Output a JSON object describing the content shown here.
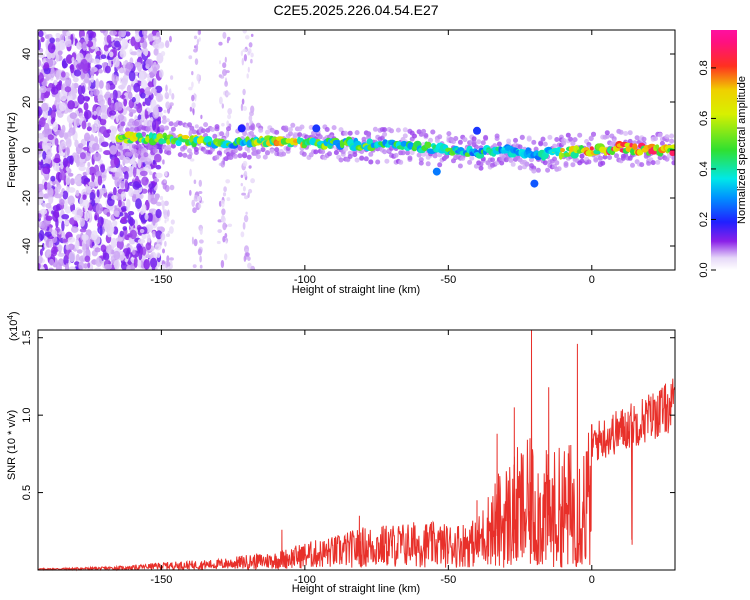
{
  "title": "C2E5.2025.226.04.54.E27",
  "colors": {
    "snr_line": "#e8302a",
    "axis": "#000000",
    "background": "#ffffff",
    "heat_faint": "#d9c4f5",
    "heat_purple": "#7a1be0",
    "heat_blue": "#1d3cff",
    "heat_cyan": "#00e8e8",
    "heat_green": "#30e030",
    "heat_yellow": "#f0e000",
    "heat_red": "#ff2020"
  },
  "chart_data": [
    {
      "type": "heatmap",
      "xlabel": "Height of straight line (km)",
      "ylabel": "Frequency (Hz)",
      "xlim": [
        -193,
        29
      ],
      "ylim": [
        -50,
        50
      ],
      "xticks": [
        -150,
        -100,
        -50,
        0
      ],
      "xtick_labels": [
        "-150",
        "-100",
        "-50",
        "0"
      ],
      "yticks": [
        -40,
        -20,
        0,
        20,
        40
      ],
      "ytick_labels": [
        "-40",
        "-20",
        "0",
        "20",
        "40"
      ],
      "colorbar": {
        "label": "Normalized spectral amplitude",
        "range": [
          0,
          0.95
        ],
        "ticks": [
          0.0,
          0.2,
          0.4,
          0.6,
          0.8
        ],
        "tick_labels": [
          "0.0",
          "0.2",
          "0.4",
          "0.6",
          "0.8"
        ]
      },
      "ridge": {
        "x": [
          -165,
          -150,
          -140,
          -125,
          -110,
          -100,
          -90,
          -80,
          -70,
          -60,
          -50,
          -40,
          -30,
          -20,
          -10,
          0,
          10,
          20,
          29
        ],
        "frequency": [
          5,
          5,
          4,
          3,
          4,
          3,
          3,
          2,
          2,
          1,
          0,
          -1,
          0,
          -2,
          -1,
          0,
          1,
          0,
          0
        ],
        "amplitude": [
          0.85,
          0.6,
          0.75,
          0.5,
          0.85,
          0.75,
          0.55,
          0.6,
          0.55,
          0.5,
          0.55,
          0.5,
          0.5,
          0.4,
          0.75,
          0.85,
          0.9,
          0.92,
          0.92
        ]
      }
    },
    {
      "type": "line",
      "xlabel": "Height of straight line (km)",
      "ylabel": "SNR (10 * v/v)",
      "y_multiplier": "(x10",
      "y_multiplier_exp": "4",
      "xlim": [
        -193,
        29
      ],
      "ylim": [
        0,
        1.55
      ],
      "xticks": [
        -150,
        -100,
        -50,
        0
      ],
      "xtick_labels": [
        "-150",
        "-100",
        "-50",
        "0"
      ],
      "yticks": [
        0.5,
        1.0,
        1.5
      ],
      "ytick_labels": [
        "0.5",
        "1.0",
        "1.5"
      ],
      "envelope": {
        "x": [
          -193,
          -170,
          -160,
          -150,
          -130,
          -120,
          -110,
          -100,
          -90,
          -80,
          -70,
          -60,
          -50,
          -40,
          -35,
          -30,
          -25,
          -20,
          -15,
          -10,
          -5,
          0,
          5,
          10,
          15,
          20,
          25,
          29
        ],
        "y": [
          0.01,
          0.02,
          0.03,
          0.05,
          0.07,
          0.1,
          0.12,
          0.18,
          0.22,
          0.28,
          0.3,
          0.32,
          0.3,
          0.33,
          0.55,
          0.7,
          0.8,
          0.85,
          0.75,
          0.8,
          0.85,
          0.95,
          1.0,
          1.05,
          1.1,
          1.15,
          1.2,
          1.25
        ]
      },
      "peaks": [
        {
          "x": -108,
          "y": 0.26
        },
        {
          "x": -81,
          "y": 0.35
        },
        {
          "x": -40,
          "y": 0.45
        },
        {
          "x": -33,
          "y": 0.88
        },
        {
          "x": -27,
          "y": 1.05
        },
        {
          "x": -21,
          "y": 1.55
        },
        {
          "x": -15,
          "y": 1.18
        },
        {
          "x": -5,
          "y": 1.46
        },
        {
          "x": 14,
          "y": 0.65
        }
      ]
    }
  ]
}
